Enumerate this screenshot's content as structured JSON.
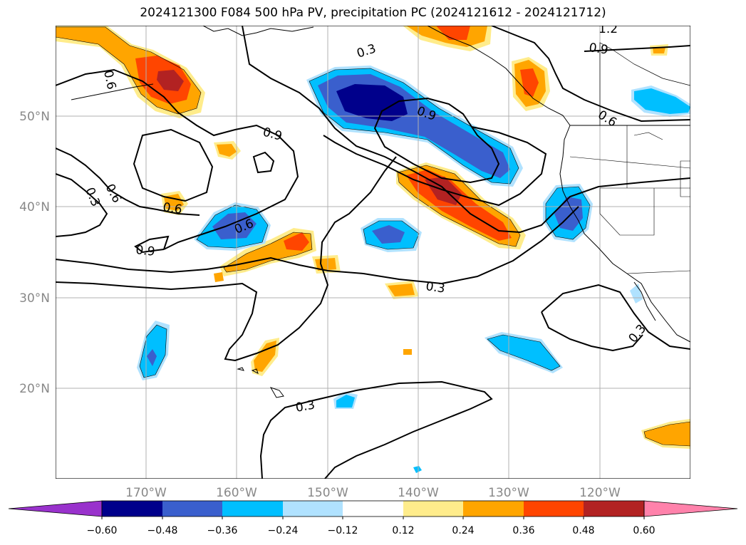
{
  "title": "2024121300 F084 500 hPa PV, precipitation PC (2024121612 - 2024121712)",
  "map": {
    "lon_range": [
      180,
      110
    ],
    "lat_range": [
      10,
      60
    ],
    "lat_ticks": [
      "50°N",
      "40°N",
      "30°N",
      "20°N"
    ],
    "lon_ticks": [
      "170°W",
      "160°W",
      "150°W",
      "140°W",
      "130°W",
      "120°W"
    ],
    "grid": true,
    "contour_labels": [
      "0.3",
      "0.6",
      "0.9",
      "0.6",
      "0.9",
      "0.6",
      "0.3",
      "0.6",
      "0.9",
      "0.6",
      "0.9",
      "0.3",
      "0.3",
      "0.3",
      "1.2",
      "0.9",
      "0.6",
      "0.9",
      "0.3"
    ]
  },
  "colorbar": {
    "ticks": [
      "−0.60",
      "−0.48",
      "−0.36",
      "−0.24",
      "−0.12",
      "0.12",
      "0.24",
      "0.36",
      "0.48",
      "0.60"
    ],
    "colors": {
      "below": "#9932cc",
      "b1": "#00008b",
      "b2": "#3a5fcd",
      "b3": "#00bfff",
      "b4": "#b0e2ff",
      "b5": "#ffffff",
      "b6": "#ffec8b",
      "b7": "#ffa500",
      "b8": "#ff4500",
      "b9": "#b22222",
      "above": "#ff82ab"
    }
  }
}
